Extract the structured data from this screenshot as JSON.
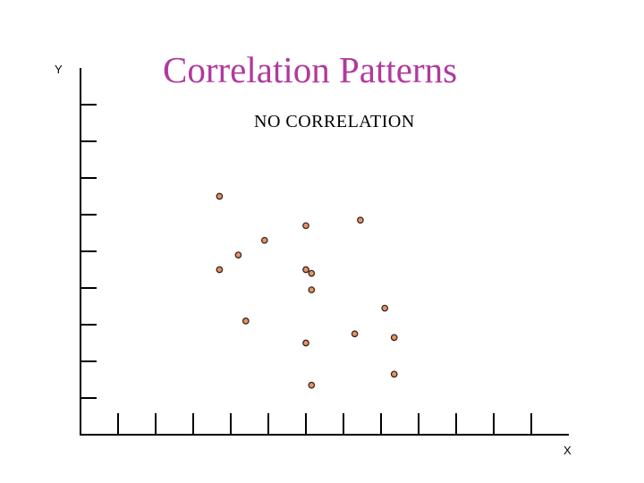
{
  "slide": {
    "title": "Correlation Patterns",
    "subtitle": "NO CORRELATION",
    "title_color": "#b03a9c",
    "dot_color": "#e4946a"
  },
  "chart_data": {
    "type": "scatter",
    "title": "Correlation Patterns",
    "subtitle": "NO CORRELATION",
    "xlabel": "X",
    "ylabel": "Y",
    "xlim": [
      0,
      13
    ],
    "ylim": [
      0,
      10
    ],
    "x_ticks": [
      1,
      2,
      3,
      4,
      5,
      6,
      7,
      8,
      9,
      10,
      11,
      12
    ],
    "y_ticks": [
      1,
      2,
      3,
      4,
      5,
      6,
      7,
      8,
      9
    ],
    "tick_labels_shown": false,
    "grid": false,
    "points": [
      {
        "x": 3.7,
        "y": 6.5
      },
      {
        "x": 3.7,
        "y": 4.5
      },
      {
        "x": 4.2,
        "y": 4.9
      },
      {
        "x": 4.4,
        "y": 3.1
      },
      {
        "x": 4.9,
        "y": 5.3
      },
      {
        "x": 6.0,
        "y": 5.7
      },
      {
        "x": 6.0,
        "y": 4.5
      },
      {
        "x": 6.15,
        "y": 4.4
      },
      {
        "x": 6.15,
        "y": 3.95
      },
      {
        "x": 6.0,
        "y": 2.5
      },
      {
        "x": 6.15,
        "y": 1.35
      },
      {
        "x": 7.45,
        "y": 5.85
      },
      {
        "x": 7.3,
        "y": 2.75
      },
      {
        "x": 8.1,
        "y": 3.45
      },
      {
        "x": 8.35,
        "y": 2.65
      },
      {
        "x": 8.35,
        "y": 1.65
      }
    ]
  }
}
